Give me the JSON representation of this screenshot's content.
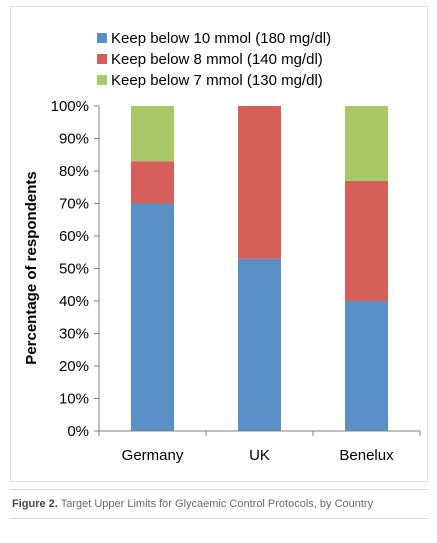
{
  "chart_data": {
    "type": "bar",
    "stacked": true,
    "categories": [
      "Germany",
      "UK",
      "Benelux"
    ],
    "series": [
      {
        "name": "Keep below 10 mmol (180 mg/dl)",
        "color": "#5b8fc8",
        "values": [
          70,
          53,
          40
        ]
      },
      {
        "name": "Keep below 8 mmol (140 mg/dl)",
        "color": "#d65f5a",
        "values": [
          13,
          47,
          37
        ]
      },
      {
        "name": "Keep below 7 mmol (130 mg/dl)",
        "color": "#a8c868",
        "values": [
          17,
          0,
          23
        ]
      }
    ],
    "ylabel": "Percentage of respondents",
    "ylim": [
      0,
      100
    ],
    "yticks": [
      "0%",
      "10%",
      "20%",
      "30%",
      "40%",
      "50%",
      "60%",
      "70%",
      "80%",
      "90%",
      "100%"
    ],
    "legend_position": "top",
    "grid": false
  },
  "caption": {
    "label": "Figure 2.",
    "text": "Target Upper Limits for Glycaemic Control Protocols, by Country"
  }
}
